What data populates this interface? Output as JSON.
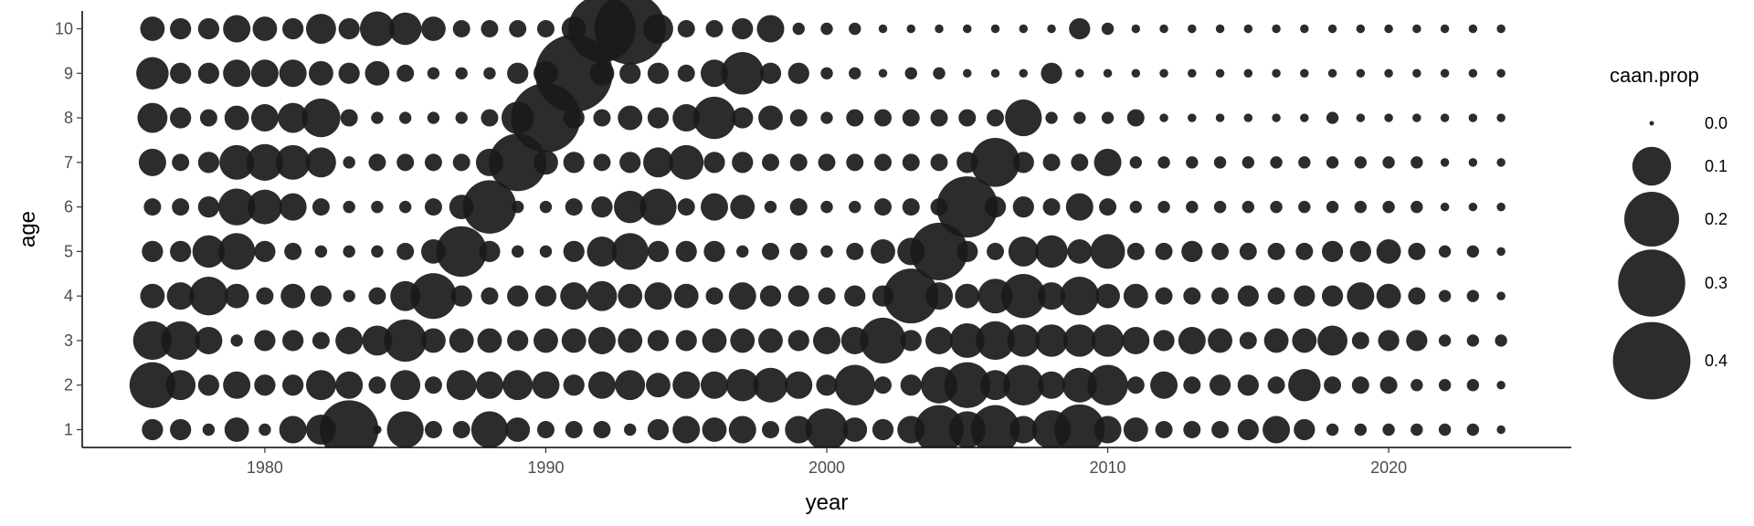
{
  "chart_data": {
    "type": "scatter",
    "xlabel": "year",
    "ylabel": "age",
    "size_legend_title": "caan.prop",
    "xlim": [
      1973.5,
      2026.5
    ],
    "ylim": [
      0.6,
      10.4
    ],
    "x_ticks": [
      1980,
      1990,
      2000,
      2010,
      2020
    ],
    "y_ticks": [
      1,
      2,
      3,
      4,
      5,
      6,
      7,
      8,
      9,
      10
    ],
    "size_legend_values": [
      0.0,
      0.1,
      0.2,
      0.3,
      0.4
    ],
    "size_legend_labels": [
      "0.0",
      "0.1",
      "0.2",
      "0.3",
      "0.4"
    ],
    "size_max": 0.45,
    "grid": false,
    "legend_position": "right",
    "point_color": "#1a1a1a",
    "years": [
      1976,
      1977,
      1978,
      1979,
      1980,
      1981,
      1982,
      1983,
      1984,
      1985,
      1986,
      1987,
      1988,
      1989,
      1990,
      1991,
      1992,
      1993,
      1994,
      1995,
      1996,
      1997,
      1998,
      1999,
      2000,
      2001,
      2002,
      2003,
      2004,
      2005,
      2006,
      2007,
      2008,
      2009,
      2010,
      2011,
      2012,
      2013,
      2014,
      2015,
      2016,
      2017,
      2018,
      2019,
      2020,
      2021,
      2022,
      2023,
      2024
    ],
    "ages": [
      1,
      2,
      3,
      4,
      5,
      6,
      7,
      8,
      9,
      10
    ],
    "values_by_age": {
      "1": [
        0.03,
        0.03,
        0.01,
        0.04,
        0.01,
        0.05,
        0.06,
        0.23,
        0.005,
        0.09,
        0.02,
        0.02,
        0.09,
        0.04,
        0.02,
        0.02,
        0.02,
        0.01,
        0.03,
        0.05,
        0.04,
        0.05,
        0.02,
        0.05,
        0.12,
        0.04,
        0.03,
        0.05,
        0.16,
        0.09,
        0.16,
        0.05,
        0.1,
        0.17,
        0.05,
        0.04,
        0.02,
        0.02,
        0.02,
        0.03,
        0.05,
        0.03,
        0.01,
        0.01,
        0.01,
        0.01,
        0.01,
        0.01,
        0.005
      ],
      "2": [
        0.14,
        0.06,
        0.03,
        0.05,
        0.03,
        0.03,
        0.06,
        0.05,
        0.02,
        0.06,
        0.02,
        0.06,
        0.05,
        0.06,
        0.05,
        0.03,
        0.05,
        0.06,
        0.04,
        0.05,
        0.05,
        0.07,
        0.08,
        0.05,
        0.03,
        0.11,
        0.02,
        0.03,
        0.09,
        0.14,
        0.06,
        0.11,
        0.05,
        0.08,
        0.11,
        0.02,
        0.05,
        0.02,
        0.03,
        0.03,
        0.02,
        0.07,
        0.02,
        0.02,
        0.02,
        0.01,
        0.01,
        0.01,
        0.005
      ],
      "3": [
        0.1,
        0.1,
        0.05,
        0.01,
        0.03,
        0.03,
        0.02,
        0.05,
        0.06,
        0.12,
        0.04,
        0.04,
        0.04,
        0.03,
        0.04,
        0.04,
        0.05,
        0.04,
        0.03,
        0.03,
        0.04,
        0.04,
        0.04,
        0.03,
        0.05,
        0.05,
        0.14,
        0.03,
        0.05,
        0.08,
        0.1,
        0.07,
        0.07,
        0.07,
        0.07,
        0.05,
        0.03,
        0.05,
        0.04,
        0.02,
        0.04,
        0.04,
        0.06,
        0.02,
        0.03,
        0.03,
        0.01,
        0.01,
        0.01
      ],
      "4": [
        0.04,
        0.05,
        0.1,
        0.04,
        0.02,
        0.04,
        0.03,
        0.01,
        0.02,
        0.06,
        0.14,
        0.03,
        0.02,
        0.03,
        0.03,
        0.05,
        0.06,
        0.04,
        0.05,
        0.04,
        0.02,
        0.05,
        0.03,
        0.03,
        0.02,
        0.03,
        0.03,
        0.2,
        0.05,
        0.04,
        0.08,
        0.13,
        0.05,
        0.1,
        0.04,
        0.04,
        0.02,
        0.02,
        0.02,
        0.03,
        0.02,
        0.03,
        0.03,
        0.05,
        0.04,
        0.02,
        0.01,
        0.01,
        0.005
      ],
      "5": [
        0.03,
        0.03,
        0.07,
        0.09,
        0.03,
        0.02,
        0.01,
        0.01,
        0.01,
        0.02,
        0.04,
        0.17,
        0.03,
        0.01,
        0.01,
        0.03,
        0.06,
        0.09,
        0.03,
        0.03,
        0.03,
        0.01,
        0.02,
        0.02,
        0.01,
        0.02,
        0.04,
        0.05,
        0.22,
        0.03,
        0.02,
        0.06,
        0.07,
        0.04,
        0.08,
        0.02,
        0.02,
        0.03,
        0.02,
        0.02,
        0.02,
        0.02,
        0.03,
        0.03,
        0.04,
        0.02,
        0.01,
        0.01,
        0.005
      ],
      "6": [
        0.02,
        0.02,
        0.03,
        0.09,
        0.08,
        0.05,
        0.02,
        0.01,
        0.01,
        0.01,
        0.02,
        0.04,
        0.19,
        0.01,
        0.01,
        0.02,
        0.03,
        0.07,
        0.09,
        0.02,
        0.05,
        0.04,
        0.01,
        0.02,
        0.01,
        0.01,
        0.02,
        0.02,
        0.02,
        0.25,
        0.03,
        0.03,
        0.02,
        0.05,
        0.02,
        0.01,
        0.01,
        0.01,
        0.01,
        0.01,
        0.01,
        0.01,
        0.01,
        0.01,
        0.01,
        0.01,
        0.005,
        0.005,
        0.005
      ],
      "7": [
        0.05,
        0.02,
        0.03,
        0.08,
        0.09,
        0.08,
        0.06,
        0.01,
        0.02,
        0.02,
        0.02,
        0.02,
        0.05,
        0.22,
        0.04,
        0.03,
        0.02,
        0.03,
        0.06,
        0.08,
        0.03,
        0.03,
        0.02,
        0.02,
        0.02,
        0.02,
        0.02,
        0.02,
        0.02,
        0.03,
        0.16,
        0.03,
        0.02,
        0.02,
        0.05,
        0.01,
        0.01,
        0.01,
        0.01,
        0.01,
        0.01,
        0.01,
        0.01,
        0.01,
        0.01,
        0.01,
        0.005,
        0.005,
        0.005
      ],
      "8": [
        0.06,
        0.03,
        0.02,
        0.04,
        0.05,
        0.06,
        0.1,
        0.02,
        0.01,
        0.01,
        0.01,
        0.01,
        0.02,
        0.07,
        0.32,
        0.03,
        0.02,
        0.04,
        0.03,
        0.05,
        0.12,
        0.03,
        0.04,
        0.02,
        0.01,
        0.02,
        0.02,
        0.02,
        0.02,
        0.02,
        0.02,
        0.09,
        0.01,
        0.01,
        0.01,
        0.02,
        0.005,
        0.005,
        0.005,
        0.005,
        0.005,
        0.005,
        0.01,
        0.005,
        0.005,
        0.005,
        0.005,
        0.005,
        0.005
      ],
      "9": [
        0.07,
        0.03,
        0.03,
        0.05,
        0.05,
        0.05,
        0.04,
        0.03,
        0.04,
        0.02,
        0.01,
        0.01,
        0.01,
        0.03,
        0.04,
        0.4,
        0.04,
        0.03,
        0.03,
        0.02,
        0.05,
        0.12,
        0.03,
        0.03,
        0.01,
        0.01,
        0.005,
        0.01,
        0.01,
        0.005,
        0.005,
        0.005,
        0.03,
        0.005,
        0.005,
        0.005,
        0.005,
        0.005,
        0.005,
        0.005,
        0.005,
        0.005,
        0.005,
        0.005,
        0.005,
        0.005,
        0.005,
        0.005,
        0.005
      ],
      "10": [
        0.04,
        0.03,
        0.03,
        0.05,
        0.04,
        0.03,
        0.06,
        0.03,
        0.08,
        0.07,
        0.04,
        0.02,
        0.02,
        0.02,
        0.02,
        0.04,
        0.3,
        0.34,
        0.06,
        0.02,
        0.02,
        0.03,
        0.05,
        0.01,
        0.01,
        0.01,
        0.005,
        0.005,
        0.005,
        0.005,
        0.005,
        0.005,
        0.005,
        0.03,
        0.01,
        0.005,
        0.005,
        0.005,
        0.005,
        0.005,
        0.005,
        0.005,
        0.005,
        0.005,
        0.005,
        0.005,
        0.005,
        0.005,
        0.005
      ]
    }
  }
}
